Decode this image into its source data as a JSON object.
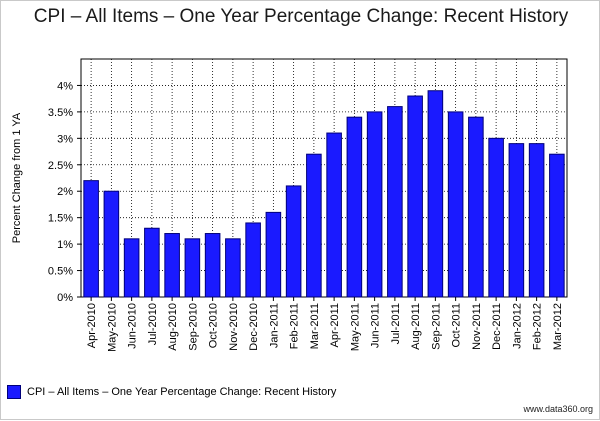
{
  "chart_data": {
    "type": "bar",
    "title": "CPI – All Items – One Year Percentage Change: Recent History",
    "xlabel": "",
    "ylabel": "Percent Change from 1 YA",
    "ylim": [
      0,
      4.5
    ],
    "yticks": [
      0,
      0.5,
      1,
      1.5,
      2,
      2.5,
      3,
      3.5,
      4
    ],
    "ytick_labels": [
      "0%",
      "0.5%",
      "1%",
      "1.5%",
      "2%",
      "2.5%",
      "3%",
      "3.5%",
      "4%"
    ],
    "grid": true,
    "legend": "bottom-left",
    "bar_color": "#1a1aff",
    "categories": [
      "Apr-2010",
      "May-2010",
      "Jun-2010",
      "Jul-2010",
      "Aug-2010",
      "Sep-2010",
      "Oct-2010",
      "Nov-2010",
      "Dec-2010",
      "Jan-2011",
      "Feb-2011",
      "Mar-2011",
      "Apr-2011",
      "May-2011",
      "Jun-2011",
      "Jul-2011",
      "Aug-2011",
      "Sep-2011",
      "Oct-2011",
      "Nov-2011",
      "Dec-2011",
      "Jan-2012",
      "Feb-2012",
      "Mar-2012"
    ],
    "series": [
      {
        "name": "CPI – All Items – One Year Percentage Change: Recent History",
        "values": [
          2.2,
          2.0,
          1.1,
          1.3,
          1.2,
          1.1,
          1.2,
          1.1,
          1.4,
          1.6,
          2.1,
          2.7,
          3.1,
          3.4,
          3.5,
          3.6,
          3.8,
          3.9,
          3.5,
          3.4,
          3.0,
          2.9,
          2.9,
          2.7
        ]
      }
    ]
  },
  "watermark": "www.data360.org"
}
